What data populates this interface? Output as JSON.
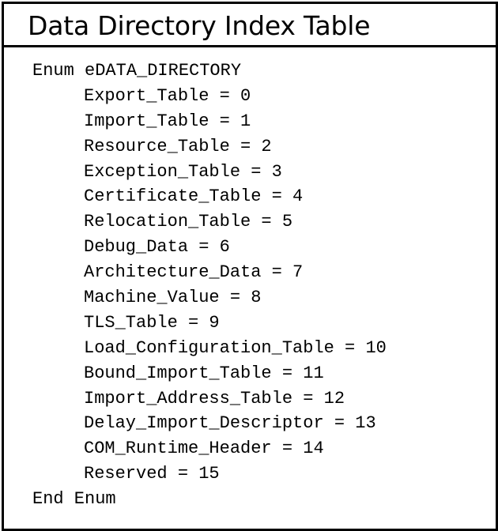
{
  "title": "Data Directory Index Table",
  "code": {
    "enum_header": "Enum eDATA_DIRECTORY",
    "members": [
      "Export_Table = 0",
      "Import_Table = 1",
      "Resource_Table = 2",
      "Exception_Table = 3",
      "Certificate_Table = 4",
      "Relocation_Table = 5",
      "Debug_Data = 6",
      "Architecture_Data = 7",
      "Machine_Value = 8",
      "TLS_Table = 9",
      "Load_Configuration_Table = 10",
      "Bound_Import_Table = 11",
      "Import_Address_Table = 12",
      "Delay_Import_Descriptor = 13",
      "COM_Runtime_Header = 14",
      "Reserved = 15"
    ],
    "enum_footer": "End Enum"
  }
}
